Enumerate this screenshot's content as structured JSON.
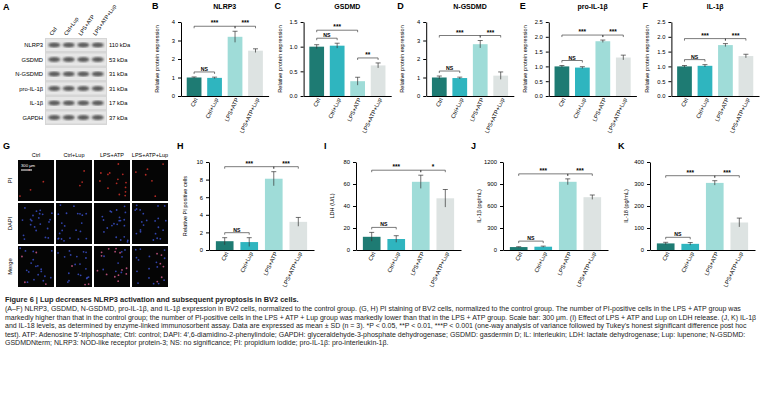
{
  "chart_data": [
    {
      "type": "bar",
      "panel": "B",
      "title": "NLRP3",
      "y_label": "Relative protein expression",
      "categories": [
        "Ctrl",
        "Ctrl+Lup",
        "LPS+ATP",
        "LPS+ATP+Lup"
      ],
      "values": [
        1,
        0.98,
        3.2,
        2.45
      ],
      "errors": [
        0.03,
        0.04,
        0.3,
        0.1
      ],
      "colors": [
        "#1e7b73",
        "#2fb5bf",
        "#9fdcd8",
        "#dde3e2"
      ],
      "ylim": [
        0,
        4
      ],
      "yticks": [
        0,
        1,
        2,
        3,
        4
      ],
      "comparisons": [
        {
          "groups": [
            "Ctrl",
            "Ctrl+Lup"
          ],
          "label": "NS"
        },
        {
          "groups": [
            "Ctrl",
            "LPS+ATP"
          ],
          "label": "***"
        },
        {
          "groups": [
            "LPS+ATP",
            "LPS+ATP+Lup"
          ],
          "label": "***"
        }
      ]
    },
    {
      "type": "bar",
      "panel": "C",
      "title": "GSDMD",
      "y_label": "Relative protein expression",
      "categories": [
        "Ctrl",
        "Ctrl+Lup",
        "LPS+ATP",
        "LPS+ATP+Lup"
      ],
      "values": [
        1,
        1.02,
        0.3,
        0.62
      ],
      "errors": [
        0.04,
        0.05,
        0.08,
        0.05
      ],
      "colors": [
        "#1e7b73",
        "#2fb5bf",
        "#9fdcd8",
        "#dde3e2"
      ],
      "ylim": [
        0,
        1.5
      ],
      "yticks": [
        {
          "value": 0,
          "label": "0.0"
        },
        0.5,
        {
          "value": 1,
          "label": "1.0"
        },
        1.5
      ],
      "comparisons": [
        {
          "groups": [
            "Ctrl",
            "Ctrl+Lup"
          ],
          "label": "NS"
        },
        {
          "groups": [
            "Ctrl",
            "LPS+ATP"
          ],
          "label": "***"
        },
        {
          "groups": [
            "LPS+ATP",
            "LPS+ATP+Lup"
          ],
          "label": "**"
        }
      ]
    },
    {
      "type": "bar",
      "panel": "D",
      "title": "N-GSDMD",
      "y_label": "Relative protein expression",
      "categories": [
        "Ctrl",
        "Ctrl+Lup",
        "LPS+ATP",
        "LPS+ATP+Lup"
      ],
      "values": [
        1,
        0.97,
        2.8,
        1.1
      ],
      "errors": [
        0.08,
        0.05,
        0.2,
        0.2
      ],
      "colors": [
        "#1e7b73",
        "#2fb5bf",
        "#9fdcd8",
        "#dde3e2"
      ],
      "ylim": [
        0,
        4
      ],
      "yticks": [
        0,
        1,
        2,
        3,
        4
      ],
      "comparisons": [
        {
          "groups": [
            "Ctrl",
            "Ctrl+Lup"
          ],
          "label": "NS"
        },
        {
          "groups": [
            "Ctrl",
            "LPS+ATP"
          ],
          "label": "***"
        },
        {
          "groups": [
            "LPS+ATP",
            "LPS+ATP+Lup"
          ],
          "label": "***"
        }
      ]
    },
    {
      "type": "bar",
      "panel": "E",
      "title": "pro-IL-1β",
      "y_label": "Relative protein expression",
      "categories": [
        "Ctrl",
        "Ctrl+Lup",
        "LPS+ATP",
        "LPS+ATP+Lup"
      ],
      "values": [
        1,
        0.96,
        1.85,
        1.3
      ],
      "errors": [
        0.03,
        0.03,
        0.04,
        0.08
      ],
      "colors": [
        "#1e7b73",
        "#2fb5bf",
        "#9fdcd8",
        "#dde3e2"
      ],
      "ylim": [
        0,
        2.5
      ],
      "yticks": [
        {
          "value": 0,
          "label": "0.0"
        },
        0.5,
        {
          "value": 1,
          "label": "1.0"
        },
        1.5,
        {
          "value": 2,
          "label": "2.0"
        },
        2.5
      ],
      "comparisons": [
        {
          "groups": [
            "Ctrl",
            "Ctrl+Lup"
          ],
          "label": "NS"
        },
        {
          "groups": [
            "Ctrl",
            "LPS+ATP"
          ],
          "label": "***"
        },
        {
          "groups": [
            "LPS+ATP",
            "LPS+ATP+Lup"
          ],
          "label": "***"
        }
      ]
    },
    {
      "type": "bar",
      "panel": "F",
      "title": "IL-1β",
      "y_label": "Relative protein expression",
      "categories": [
        "Ctrl",
        "Ctrl+Lup",
        "LPS+ATP",
        "LPS+ATP+Lup"
      ],
      "values": [
        1,
        1.02,
        1.72,
        1.35
      ],
      "errors": [
        0.03,
        0.04,
        0.05,
        0.06
      ],
      "colors": [
        "#1e7b73",
        "#2fb5bf",
        "#9fdcd8",
        "#dde3e2"
      ],
      "ylim": [
        0,
        2.5
      ],
      "yticks": [
        {
          "value": 0,
          "label": "0.0"
        },
        0.5,
        {
          "value": 1,
          "label": "1.0"
        },
        1.5,
        {
          "value": 2,
          "label": "2.0"
        },
        2.5
      ],
      "comparisons": [
        {
          "groups": [
            "Ctrl",
            "Ctrl+Lup"
          ],
          "label": "NS"
        },
        {
          "groups": [
            "Ctrl",
            "LPS+ATP"
          ],
          "label": "***"
        },
        {
          "groups": [
            "LPS+ATP",
            "LPS+ATP+Lup"
          ],
          "label": "***"
        }
      ]
    },
    {
      "type": "bar",
      "panel": "H",
      "y_label": "Relative PI positive cells",
      "categories": [
        "Ctrl",
        "Ctrl+Lup",
        "LPS+ATP",
        "LPS+ATP+Lup"
      ],
      "values": [
        1,
        0.9,
        8.1,
        3.2
      ],
      "errors": [
        0.4,
        0.5,
        0.8,
        0.5
      ],
      "colors": [
        "#1e7b73",
        "#2fb5bf",
        "#9fdcd8",
        "#dde3e2"
      ],
      "ylim": [
        0,
        10
      ],
      "yticks": [
        0,
        2,
        4,
        6,
        8,
        10
      ],
      "comparisons": [
        {
          "groups": [
            "Ctrl",
            "Ctrl+Lup"
          ],
          "label": "NS"
        },
        {
          "groups": [
            "Ctrl",
            "LPS+ATP"
          ],
          "label": "***"
        },
        {
          "groups": [
            "LPS+ATP",
            "LPS+ATP+Lup"
          ],
          "label": "***"
        }
      ]
    },
    {
      "type": "bar",
      "panel": "I",
      "y_label": "LDH (U/L)",
      "categories": [
        "Ctrl",
        "Ctrl+Lup",
        "LPS+ATP",
        "LPS+ATP+Lup"
      ],
      "values": [
        12,
        10,
        62,
        47
      ],
      "errors": [
        4,
        3,
        6,
        8
      ],
      "colors": [
        "#1e7b73",
        "#2fb5bf",
        "#9fdcd8",
        "#dde3e2"
      ],
      "ylim": [
        0,
        80
      ],
      "yticks": [
        0,
        20,
        40,
        60,
        80
      ],
      "comparisons": [
        {
          "groups": [
            "Ctrl",
            "Ctrl+Lup"
          ],
          "label": "NS"
        },
        {
          "groups": [
            "Ctrl",
            "LPS+ATP"
          ],
          "label": "***"
        },
        {
          "groups": [
            "LPS+ATP",
            "LPS+ATP+Lup"
          ],
          "label": "*"
        }
      ]
    },
    {
      "type": "bar",
      "panel": "J",
      "y_label": "IL-1β (pg/mL)",
      "categories": [
        "Ctrl",
        "Ctrl+Lup",
        "LPS+ATP",
        "LPS+ATP+Lup"
      ],
      "values": [
        40,
        45,
        930,
        720
      ],
      "errors": [
        5,
        8,
        40,
        30
      ],
      "colors": [
        "#1e7b73",
        "#2fb5bf",
        "#9fdcd8",
        "#dde3e2"
      ],
      "ylim": [
        0,
        1200
      ],
      "yticks": [
        0,
        300,
        600,
        900,
        1200
      ],
      "comparisons": [
        {
          "groups": [
            "Ctrl",
            "Ctrl+Lup"
          ],
          "label": "NS"
        },
        {
          "groups": [
            "Ctrl",
            "LPS+ATP"
          ],
          "label": "***"
        },
        {
          "groups": [
            "LPS+ATP",
            "LPS+ATP+Lup"
          ],
          "label": "***"
        }
      ]
    },
    {
      "type": "bar",
      "panel": "K",
      "y_label": "IL-18 (pg/mL)",
      "categories": [
        "Ctrl",
        "Ctrl+Lup",
        "LPS+ATP",
        "LPS+ATP+Lup"
      ],
      "values": [
        30,
        28,
        305,
        125
      ],
      "errors": [
        5,
        6,
        10,
        20
      ],
      "colors": [
        "#1e7b73",
        "#2fb5bf",
        "#9fdcd8",
        "#dde3e2"
      ],
      "ylim": [
        0,
        400
      ],
      "yticks": [
        0,
        100,
        200,
        300,
        400
      ],
      "comparisons": [
        {
          "groups": [
            "Ctrl",
            "Ctrl+Lup"
          ],
          "label": "NS"
        },
        {
          "groups": [
            "Ctrl",
            "LPS+ATP"
          ],
          "label": "***"
        },
        {
          "groups": [
            "LPS+ATP",
            "LPS+ATP+Lup"
          ],
          "label": "***"
        }
      ]
    }
  ],
  "blot": {
    "panel": "A",
    "lanes": [
      "Ctrl",
      "Ctrl+Lup",
      "LPS+ATP",
      "LPS+ATP+Lup"
    ],
    "rows": [
      {
        "protein": "NLRP3",
        "size": "110 kDa"
      },
      {
        "protein": "GSDMD",
        "size": "53 kDa"
      },
      {
        "protein": "N-GSDMD",
        "size": "31 kDa"
      },
      {
        "protein": "pro-IL-1β",
        "size": "31 kDa"
      },
      {
        "protein": "IL-1β",
        "size": "17 kDa"
      },
      {
        "protein": "GAPDH",
        "size": "37 kDa"
      }
    ]
  },
  "images": {
    "panel": "G",
    "columns": [
      "Ctrl",
      "Ctrl+Lup",
      "LPS+ATP",
      "LPS+ATP+Lup"
    ],
    "rows": [
      "PI",
      "DAPI",
      "Merge"
    ],
    "scale_bar": "300 μm"
  },
  "caption": {
    "title": "Figure 6 | Lup decreases NLRP3 activation and subsequent pyroptosis in BV2 cells.",
    "text": "(A–F) NLRP3, GSDMD, N-GSDMD, pro-IL-1β, and IL-1β expression in BV2 cells, normalized to the control group. (G, H) PI staining of BV2 cells, normalized to the control group. The number of PI-positive cells in the LPS + ATP group was markedly higher than that in the control group; the number of PI-positive cells in the LPS + ATP + Lup group was markedly lower than that in the LPS + ATP group. Scale bar: 300 μm. (I) Effect of LPS + ATP and Lup on LDH release. (J, K) IL-1β and IL-18 levels, as determined by enzyme-linked immunosorbent assay. Data are expressed as mean ± SD (n = 3). *P < 0.05, **P < 0.01, ***P < 0.001 (one-way analysis of variance followed by Tukey's honest significant difference post hoc test). ATP: Adenosine 5′-triphosphate; Ctrl: control; DAPI: 4′,6-diamidino-2-phenylindole; GAPDH: glyceraldehyde-3-phosphate dehydrogenase; GSDMD: gasdermin D; IL: interleukin; LDH: lactate dehydrogenase; Lup: lupenone; N-GSDMD: GSDMDNterm; NLRP3: NOD-like receptor protein-3; NS: no significance; PI: propidium iodide; pro-IL-1β: pro-interleukin-1β."
  }
}
